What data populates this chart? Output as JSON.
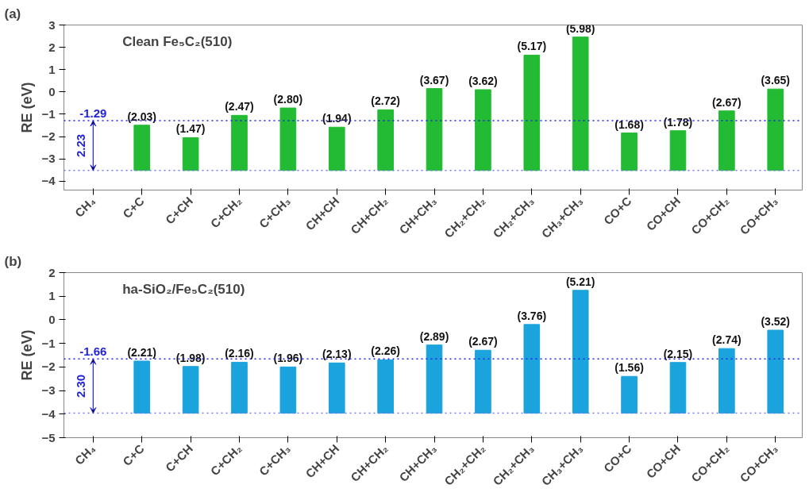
{
  "chart_data": [
    {
      "type": "bar",
      "title": "Clean Fe₅C₂(510)",
      "ylabel": "RE (eV)",
      "annotations": [
        "(a)",
        "2.23"
      ],
      "categories": [
        "CH₄",
        "C+C",
        "C+CH",
        "C+CH₂",
        "C+CH₃",
        "CH+CH",
        "CH+CH₂",
        "CH+CH₃",
        "CH₂+CH₂",
        "CH₂+CH₃",
        "CH₃+CH₃",
        "CO+C",
        "CO+CH",
        "CO+CH₂",
        "CO+CH₃"
      ],
      "values": [
        null,
        2.03,
        1.47,
        2.47,
        2.8,
        1.94,
        2.72,
        3.67,
        3.62,
        5.17,
        5.98,
        1.68,
        1.78,
        2.67,
        3.65
      ],
      "base": [
        null,
        -3.52,
        -3.52,
        -3.52,
        -3.52,
        -3.52,
        -3.52,
        -3.52,
        -3.52,
        -3.52,
        -3.52,
        -3.52,
        -3.52,
        -3.52,
        -3.52
      ],
      "value_labels": [
        null,
        "(2.03)",
        "(1.47)",
        "(2.47)",
        "(2.80)",
        "(1.94)",
        "(2.72)",
        "(3.67)",
        "(3.62)",
        "(5.17)",
        "(5.98)",
        "(1.68)",
        "(1.78)",
        "(2.67)",
        "(3.65)"
      ],
      "color": "#22bb33",
      "ylim": [
        -4.4,
        3
      ],
      "yticks": [
        -4,
        -3,
        -2,
        -1,
        0,
        1,
        2,
        3
      ],
      "grid": false,
      "ref_lines": [
        {
          "axis": "y",
          "value": -1.29,
          "label": "-1.29",
          "color": "#2222dd",
          "line_style": "dotted"
        },
        {
          "axis": "y",
          "value": -3.52,
          "label": null,
          "color": "#7777ee",
          "line_style": "dotted"
        }
      ]
    },
    {
      "type": "bar",
      "title": "ha-SiO₂/Fe₅C₂(510)",
      "ylabel": "RE (eV)",
      "annotations": [
        "(b)",
        "2.30"
      ],
      "categories": [
        "CH₄",
        "C+C",
        "C+CH",
        "C+CH₂",
        "C+CH₃",
        "CH+CH",
        "CH+CH₂",
        "CH+CH₃",
        "CH₂+CH₂",
        "CH₂+CH₃",
        "CH₃+CH₃",
        "CO+C",
        "CO+CH",
        "CO+CH₂",
        "CO+CH₃"
      ],
      "values": [
        null,
        2.21,
        1.98,
        2.16,
        1.96,
        2.13,
        2.26,
        2.89,
        2.67,
        3.76,
        5.21,
        1.56,
        2.15,
        2.74,
        3.52
      ],
      "base": [
        null,
        -3.96,
        -3.96,
        -3.96,
        -3.96,
        -3.96,
        -3.96,
        -3.96,
        -3.96,
        -3.96,
        -3.96,
        -3.96,
        -3.96,
        -3.96,
        -3.96
      ],
      "value_labels": [
        null,
        "(2.21)",
        "(1.98)",
        "(2.16)",
        "(1.96)",
        "(2.13)",
        "(2.26)",
        "(2.89)",
        "(2.67)",
        "(3.76)",
        "(5.21)",
        "(1.56)",
        "(2.15)",
        "(2.74)",
        "(3.52)"
      ],
      "color": "#1aa3dd",
      "ylim": [
        -5,
        2
      ],
      "yticks": [
        -5,
        -4,
        -3,
        -2,
        -1,
        0,
        1,
        2
      ],
      "grid": false,
      "ref_lines": [
        {
          "axis": "y",
          "value": -1.66,
          "label": "-1.66",
          "color": "#2222dd",
          "line_style": "dotted"
        },
        {
          "axis": "y",
          "value": -3.96,
          "label": null,
          "color": "#7777ee",
          "line_style": "dotted"
        }
      ]
    }
  ]
}
